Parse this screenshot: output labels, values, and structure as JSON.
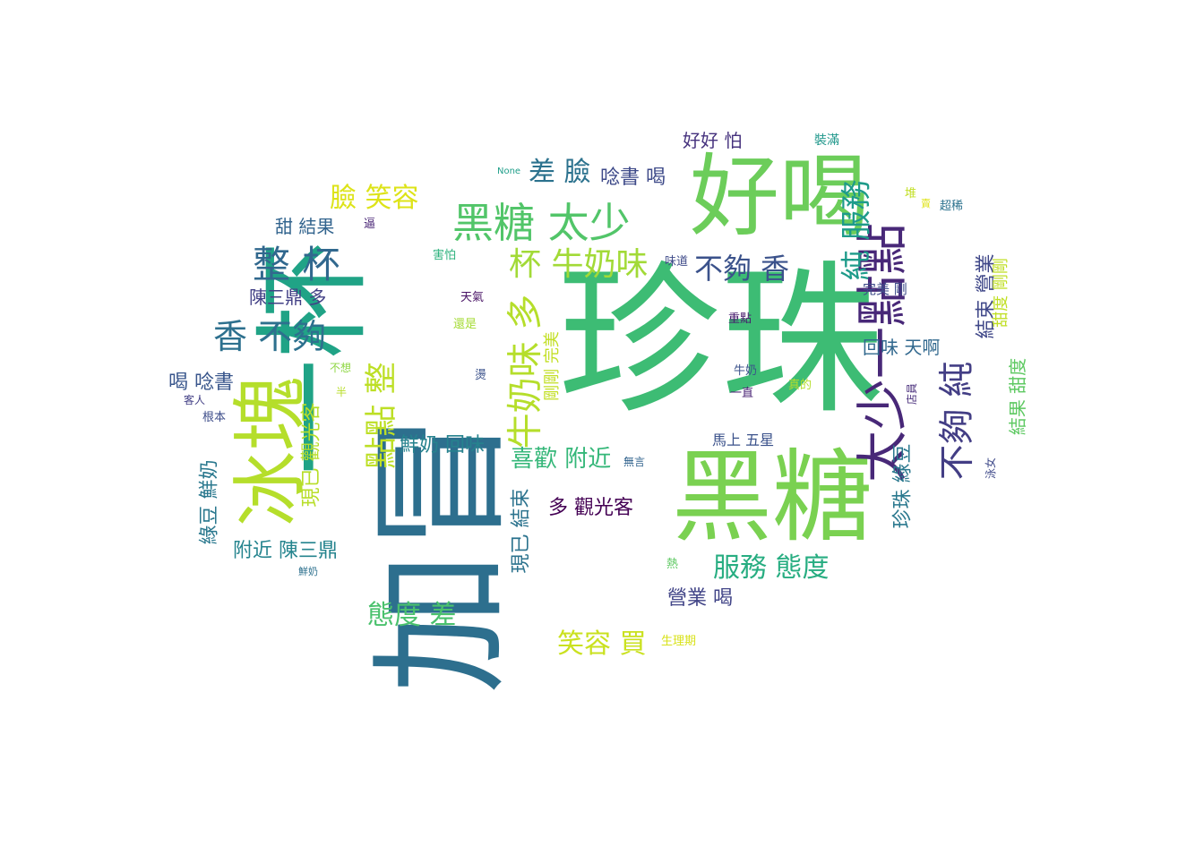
{
  "word_cloud": {
    "words": [
      {
        "text": "珍珠",
        "color": "#3dbc74"
      },
      {
        "text": "一杯",
        "color": "#20a386"
      },
      {
        "text": "加冒",
        "color": "#2d6f8e"
      },
      {
        "text": "黑糖",
        "color": "#7ad151"
      },
      {
        "text": "好喝",
        "color": "#6ccd5a"
      },
      {
        "text": "冰塊",
        "color": "#b5de2b"
      },
      {
        "text": "太少一點點",
        "color": "#482878"
      },
      {
        "text": "不夠 純",
        "color": "#433e85"
      },
      {
        "text": "黑糖 太少",
        "color": "#52c569"
      },
      {
        "text": "整 杯",
        "color": "#31688e"
      },
      {
        "text": "香 不夠",
        "color": "#2d708e"
      },
      {
        "text": "純 服務",
        "color": "#1e9b8a"
      },
      {
        "text": "牛奶味 多",
        "color": "#b5de2b"
      },
      {
        "text": "杯 牛奶味",
        "color": "#a2da37"
      },
      {
        "text": "不夠 香",
        "color": "#3b528b"
      },
      {
        "text": "點點 整",
        "color": "#bddf26"
      },
      {
        "text": "服務 態度",
        "color": "#27ad81"
      },
      {
        "text": "差 臉",
        "color": "#2c728e"
      },
      {
        "text": "臉 笑容",
        "color": "#dde318"
      },
      {
        "text": "態度 差",
        "color": "#4ac16d"
      },
      {
        "text": "笑容 買",
        "color": "#cae11f"
      },
      {
        "text": "喜歡 附近",
        "color": "#35b779"
      },
      {
        "text": "現已 觀光客",
        "color": "#b8de29"
      },
      {
        "text": "多 觀光客",
        "color": "#440154"
      },
      {
        "text": "綠豆 鮮奶",
        "color": "#2a788e"
      },
      {
        "text": "附近 陳三鼎",
        "color": "#25848e"
      },
      {
        "text": "陳三鼎 多",
        "color": "#424086"
      },
      {
        "text": "甜 結果",
        "color": "#32648e"
      },
      {
        "text": "喝 唸書",
        "color": "#39568c"
      },
      {
        "text": "鮮奶 回味",
        "color": "#26828e"
      },
      {
        "text": "唸書 喝",
        "color": "#3e4a89"
      },
      {
        "text": "現已 結束",
        "color": "#2c738e"
      },
      {
        "text": "營業 喝",
        "color": "#414487"
      },
      {
        "text": "好好 怕",
        "color": "#46327e"
      },
      {
        "text": "珍珠 綠豆",
        "color": "#2a788e"
      },
      {
        "text": "結束 營業",
        "color": "#3f4788"
      },
      {
        "text": "回味 天啊",
        "color": "#31688e"
      },
      {
        "text": "結果 甜度",
        "color": "#5ec962"
      },
      {
        "text": "甜度 剛剛",
        "color": "#c0df25"
      },
      {
        "text": "剛剛 完美",
        "color": "#c2df23"
      },
      {
        "text": "馬上 五星",
        "color": "#3b528b"
      },
      {
        "text": "完美 剛",
        "color": "#3e4c8a"
      },
      {
        "text": "裝滿",
        "color": "#1f978b"
      },
      {
        "text": "超稀",
        "color": "#2c728e"
      },
      {
        "text": "堆",
        "color": "#c2df23"
      },
      {
        "text": "賣",
        "color": "#dfe318"
      },
      {
        "text": "味道",
        "color": "#3e4a89"
      },
      {
        "text": "害怕",
        "color": "#2db27d"
      },
      {
        "text": "逼",
        "color": "#482475"
      },
      {
        "text": "天氣",
        "color": "#471164"
      },
      {
        "text": "還是",
        "color": "#a5db36"
      },
      {
        "text": "不想",
        "color": "#8fd744"
      },
      {
        "text": "半",
        "color": "#b8de29"
      },
      {
        "text": "燙",
        "color": "#3b528b"
      },
      {
        "text": "客人",
        "color": "#423f85"
      },
      {
        "text": "根本",
        "color": "#3d4d8a"
      },
      {
        "text": "鮮奶",
        "color": "#2d708e"
      },
      {
        "text": "重點",
        "color": "#481b6d"
      },
      {
        "text": "牛奶",
        "color": "#3b528b"
      },
      {
        "text": "一直",
        "color": "#482173"
      },
      {
        "text": "真的",
        "color": "#b5de2b"
      },
      {
        "text": "無言",
        "color": "#32648e"
      },
      {
        "text": "熱",
        "color": "#5ec962"
      },
      {
        "text": "生理期",
        "color": "#d8e219"
      },
      {
        "text": "泳女",
        "color": "#3e4989"
      },
      {
        "text": "店員",
        "color": "#472c7a"
      },
      {
        "text": "None",
        "color": "#1f9e89"
      }
    ]
  }
}
